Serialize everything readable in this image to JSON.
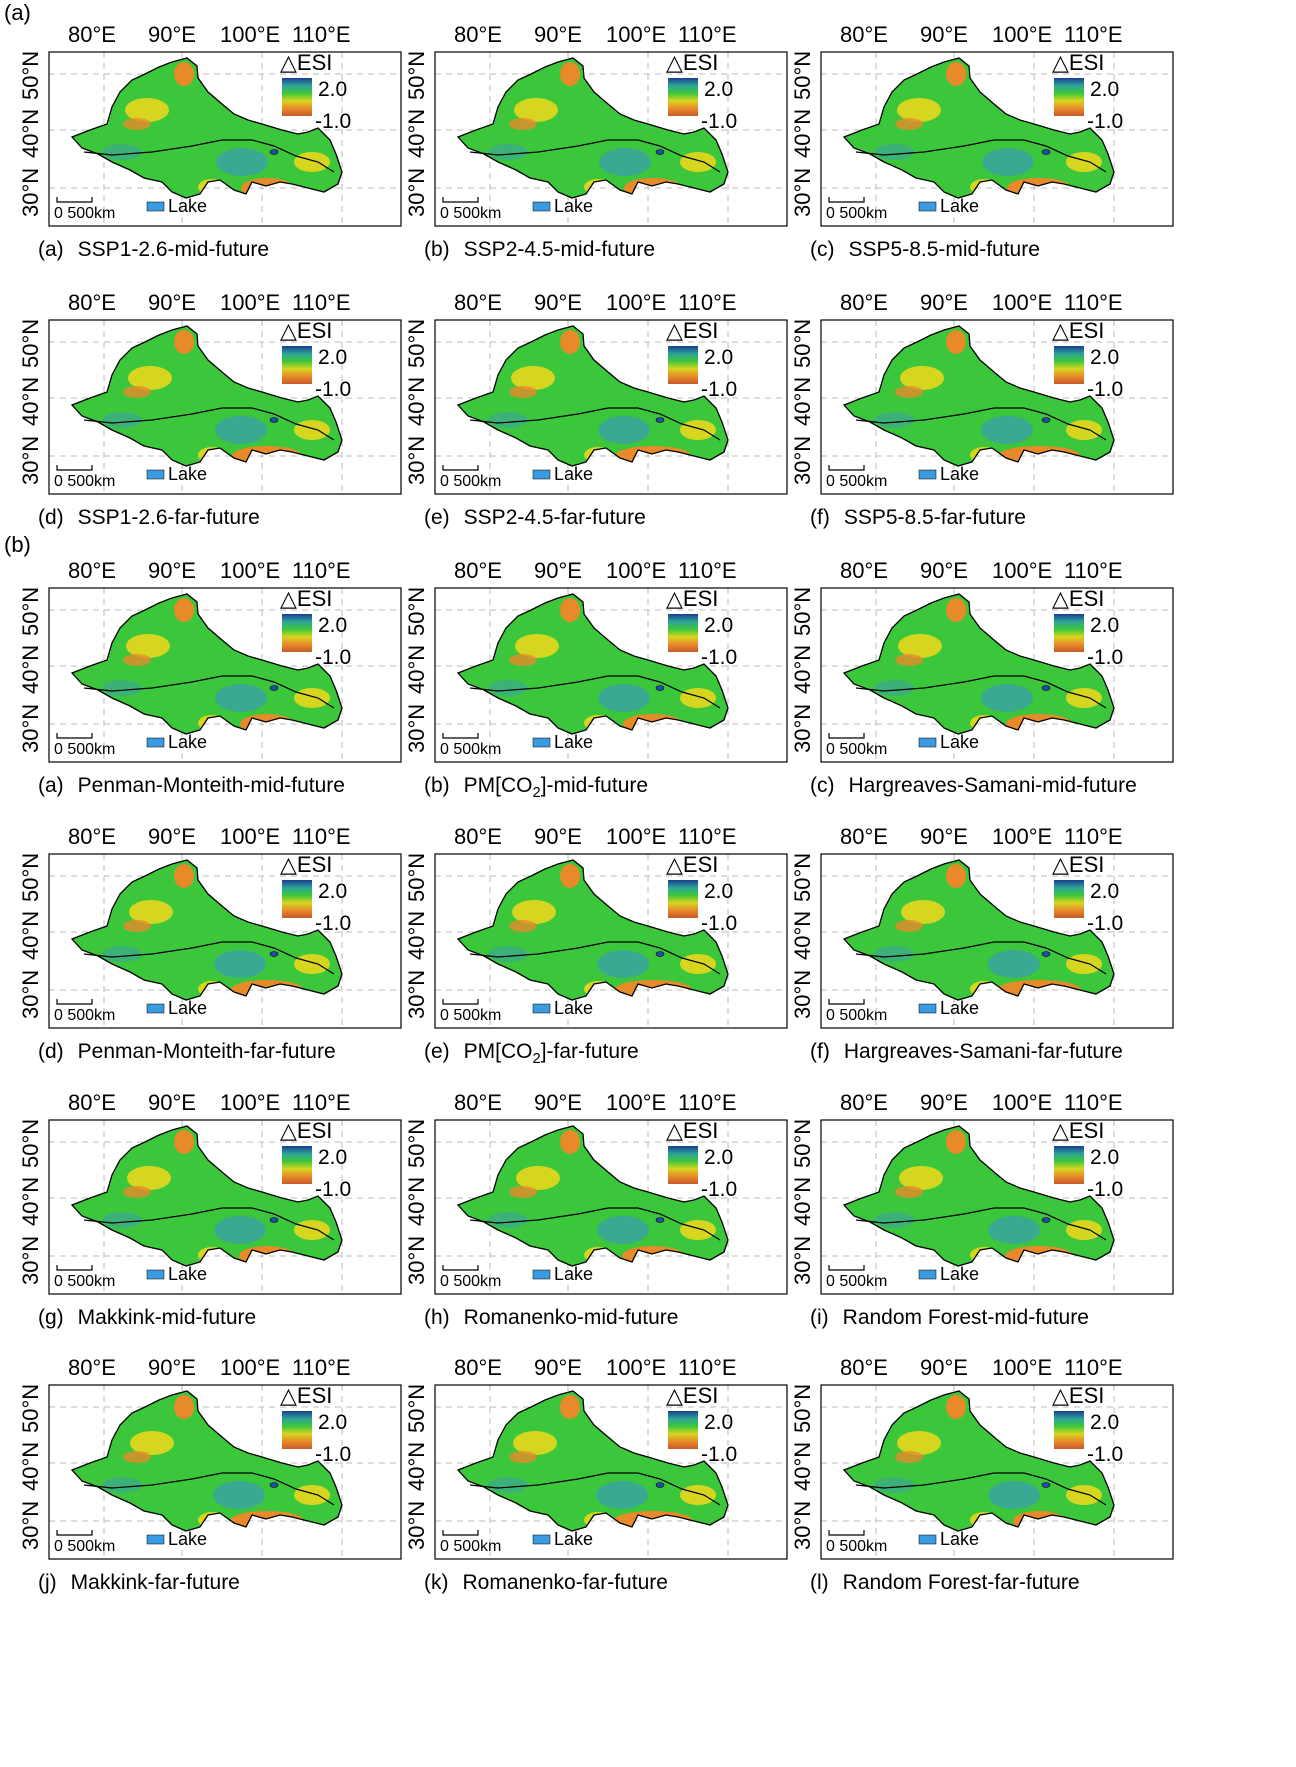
{
  "section_labels": {
    "a": "(a)",
    "b": "(b)"
  },
  "axes": {
    "x_ticks": [
      "80°E",
      "90°E",
      "100°E",
      "110°E"
    ],
    "y_ticks": [
      "50°N",
      "40°N",
      "30°N"
    ]
  },
  "legend": {
    "title": "△ESI",
    "max_label": "2.0",
    "min_label": "-1.0",
    "colors": [
      "#1a3d8f",
      "#2ea398",
      "#3cc63c",
      "#d6d620",
      "#e88a2a",
      "#c85a28"
    ]
  },
  "scale_bar": {
    "label": "0  500km"
  },
  "lake_legend": {
    "label": "Lake",
    "color": "#3a9be0"
  },
  "map_colors": {
    "water": "#1f4fa8",
    "green": "#3cc63c",
    "yellow": "#d6d620",
    "orange": "#e88a2a",
    "blue": "#3aa3a0"
  },
  "panels": [
    {
      "letter": "(a)",
      "caption": "SSP1-2.6-mid-future"
    },
    {
      "letter": "(b)",
      "caption": "SSP2-4.5-mid-future"
    },
    {
      "letter": "(c)",
      "caption": "SSP5-8.5-mid-future"
    },
    {
      "letter": "(d)",
      "caption": "SSP1-2.6-far-future"
    },
    {
      "letter": "(e)",
      "caption": "SSP2-4.5-far-future"
    },
    {
      "letter": "(f)",
      "caption": "SSP5-8.5-far-future"
    },
    {
      "letter": "(a)",
      "caption": "Penman-Monteith-mid-future"
    },
    {
      "letter": "(b)",
      "caption_pre": "PM[CO",
      "caption_sub": "2",
      "caption_post": "]-mid-future"
    },
    {
      "letter": "(c)",
      "caption": "Hargreaves-Samani-mid-future"
    },
    {
      "letter": "(d)",
      "caption": "Penman-Monteith-far-future"
    },
    {
      "letter": "(e)",
      "caption_pre": "PM[CO",
      "caption_sub": "2",
      "caption_post": "]-far-future"
    },
    {
      "letter": "(f)",
      "caption": "Hargreaves-Samani-far-future"
    },
    {
      "letter": "(g)",
      "caption": "Makkink-mid-future"
    },
    {
      "letter": "(h)",
      "caption": "Romanenko-mid-future"
    },
    {
      "letter": "(i)",
      "caption": "Random Forest-mid-future"
    },
    {
      "letter": "(j)",
      "caption": "Makkink-far-future"
    },
    {
      "letter": "(k)",
      "caption": "Romanenko-far-future"
    },
    {
      "letter": "(l)",
      "caption": "Random Forest-far-future"
    }
  ]
}
